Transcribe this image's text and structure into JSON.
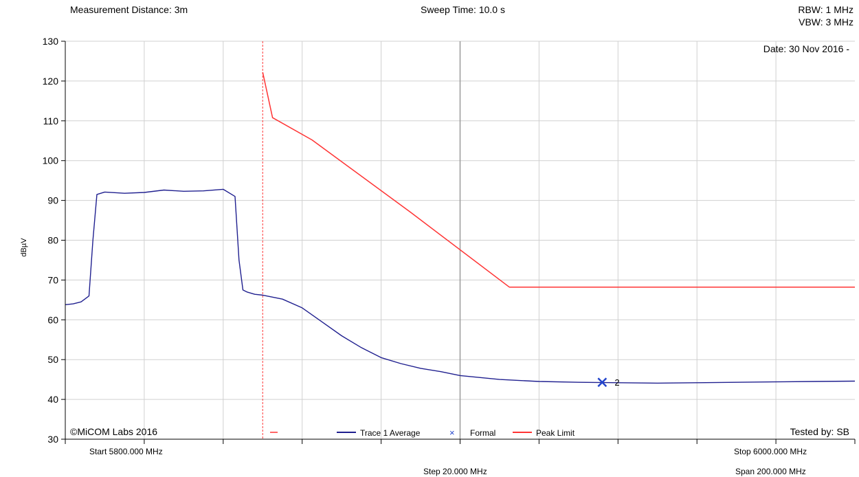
{
  "header": {
    "measurement_distance": "Measurement Distance: 3m",
    "sweep_time": "Sweep Time: 10.0 s",
    "rbw": "RBW: 1 MHz",
    "vbw": "VBW: 3 MHz"
  },
  "date_label": "Date: 30 Nov 2016 -",
  "copyright": "©MiCOM Labs 2016",
  "tested_by": "Tested by: SB",
  "footer": {
    "start": "Start 5800.000 MHz",
    "step": "Step 20.000 MHz",
    "stop": "Stop 6000.000 MHz",
    "span": "Span 200.000 MHz"
  },
  "colors": {
    "trace": "#1f1f8f",
    "limit": "#ff3333",
    "marker": "#2244cc",
    "grid": "#d0d0d0",
    "center_line": "#999999"
  },
  "chart_data": {
    "type": "line",
    "xlim": [
      5800,
      6000
    ],
    "ylim": [
      30,
      130
    ],
    "ylabel": "dBµV",
    "yticks": [
      "30",
      "40",
      "50",
      "60",
      "70",
      "80",
      "90",
      "100",
      "110",
      "120",
      "130"
    ],
    "grid": true,
    "legend_position": "bottom",
    "vertical_marker_mhz": 5850,
    "center_line_mhz": 5900,
    "series": [
      {
        "name": "Trace 1 Average",
        "x": [
          5800,
          5802,
          5804,
          5806,
          5807,
          5808,
          5810,
          5815,
          5820,
          5825,
          5830,
          5835,
          5840,
          5843,
          5844,
          5845,
          5846,
          5848,
          5850,
          5855,
          5860,
          5865,
          5870,
          5875,
          5880,
          5885,
          5890,
          5895,
          5900,
          5910,
          5920,
          5930,
          5940,
          5950,
          5960,
          5970,
          5980,
          5990,
          6000
        ],
        "y": [
          63.8,
          64.0,
          64.5,
          66.0,
          80.0,
          91.5,
          92.1,
          91.8,
          92.0,
          92.6,
          92.3,
          92.4,
          92.8,
          91.0,
          75.0,
          67.5,
          67.0,
          66.4,
          66.2,
          65.2,
          63.0,
          59.5,
          56.0,
          53.0,
          50.5,
          49.0,
          47.8,
          47.0,
          46.0,
          45.0,
          44.5,
          44.3,
          44.2,
          44.1,
          44.2,
          44.3,
          44.4,
          44.5,
          44.6
        ]
      },
      {
        "name": "Peak Limit",
        "x": [
          5850,
          5852.5,
          5862.5,
          5887.5,
          5912.5,
          6000
        ],
        "y": [
          122.2,
          110.8,
          105.2,
          87.0,
          68.2,
          68.2
        ]
      }
    ],
    "markers": [
      {
        "label": "2",
        "x": 5936,
        "y": 44.3,
        "name": "Formal"
      }
    ],
    "legend": [
      {
        "name": "Trace 1 Average",
        "style": "line",
        "color": "#1f1f8f"
      },
      {
        "name": "Formal",
        "style": "x",
        "color": "#2244cc"
      },
      {
        "name": "Peak Limit",
        "style": "line",
        "color": "#ff3333"
      }
    ]
  }
}
